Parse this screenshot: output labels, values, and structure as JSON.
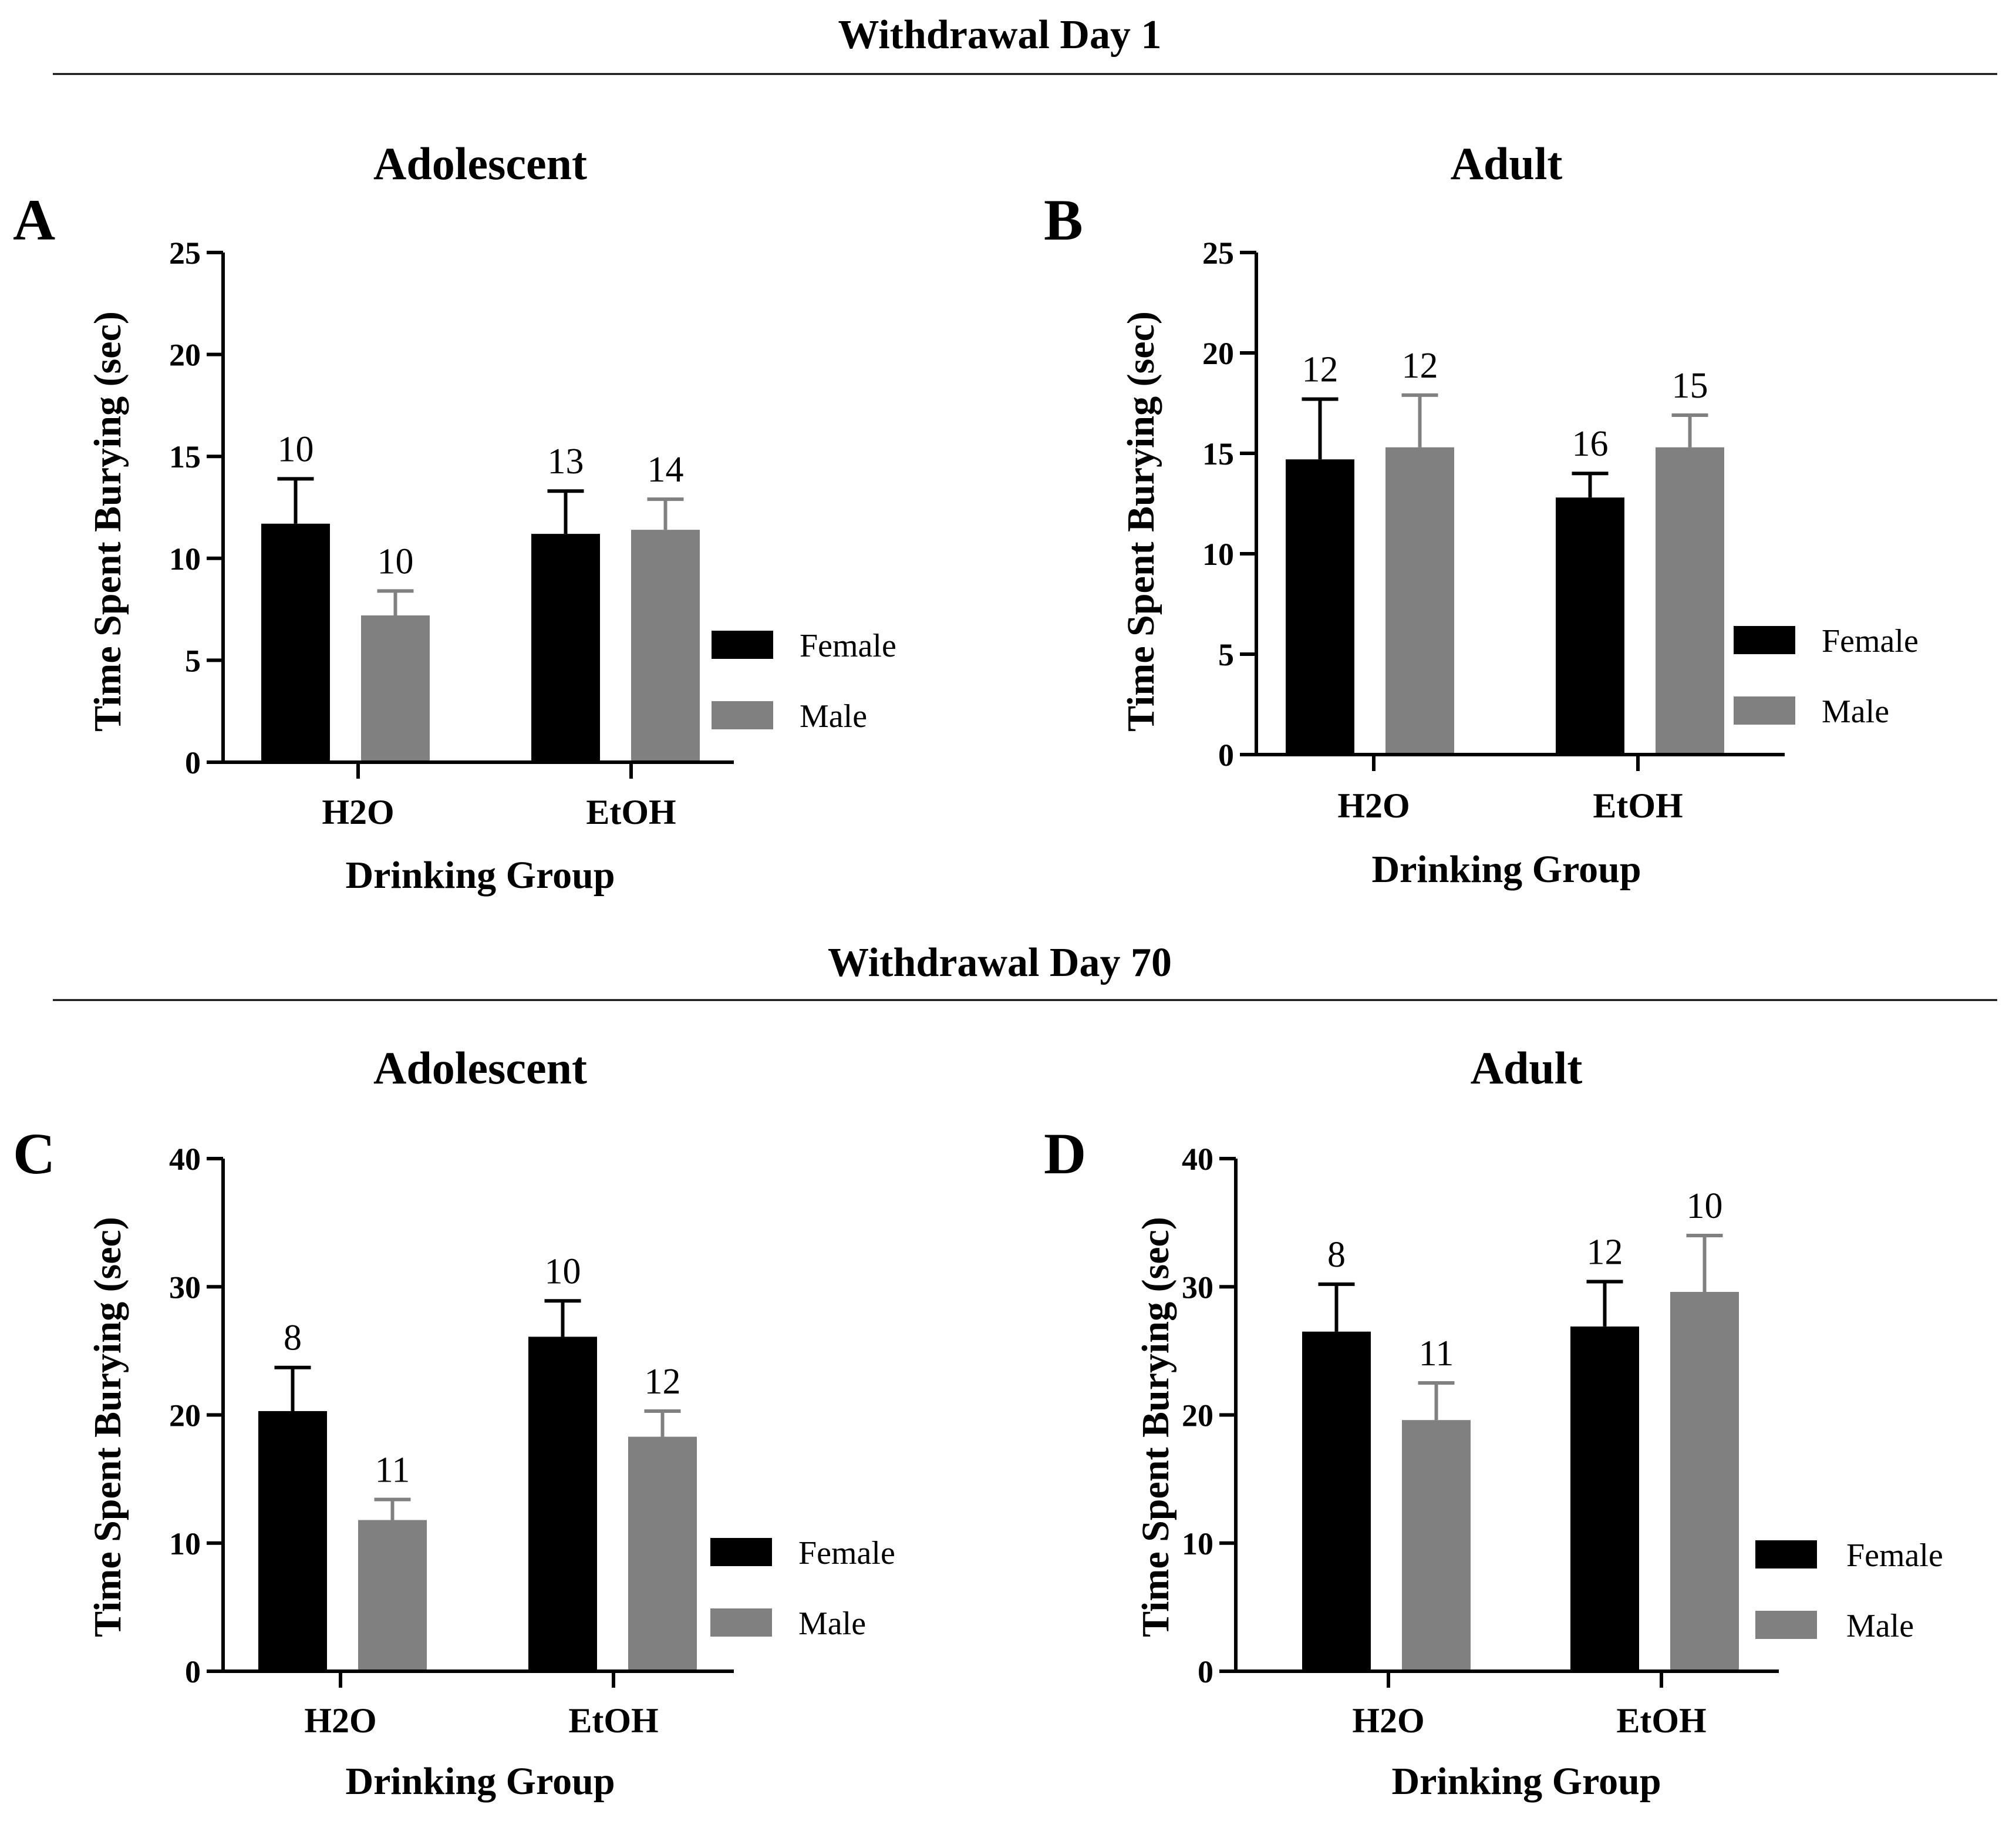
{
  "figure": {
    "sections": [
      {
        "title": "Withdrawal Day 1"
      },
      {
        "title": "Withdrawal Day 70"
      }
    ],
    "colors": {
      "Female": "#000000",
      "Male": "#808080"
    }
  },
  "chart_data": [
    {
      "panel": "A",
      "section": "Withdrawal Day 1",
      "type": "bar",
      "title": "Adolescent",
      "xlabel": "Drinking Group",
      "ylabel": "Time Spent Burying (sec)",
      "ylim": [
        0,
        25
      ],
      "yticks": [
        0,
        5,
        10,
        15,
        20,
        25
      ],
      "categories": [
        "H2O",
        "EtOH"
      ],
      "series": [
        {
          "name": "Female",
          "values": [
            11.7,
            11.2
          ],
          "errors": [
            2.2,
            2.1
          ],
          "n": [
            "10",
            "13"
          ]
        },
        {
          "name": "Male",
          "values": [
            7.2,
            11.4
          ],
          "errors": [
            1.2,
            1.5
          ],
          "n": [
            "10",
            "14"
          ]
        }
      ]
    },
    {
      "panel": "B",
      "section": "Withdrawal Day 1",
      "type": "bar",
      "title": "Adult",
      "xlabel": "Drinking Group",
      "ylabel": "Time Spent Burying (sec)",
      "ylim": [
        0,
        25
      ],
      "yticks": [
        0,
        5,
        10,
        15,
        20,
        25
      ],
      "categories": [
        "H2O",
        "EtOH"
      ],
      "series": [
        {
          "name": "Female",
          "values": [
            14.7,
            12.8
          ],
          "errors": [
            3.0,
            1.2
          ],
          "n": [
            "12",
            "16"
          ]
        },
        {
          "name": "Male",
          "values": [
            15.3,
            15.3
          ],
          "errors": [
            2.6,
            1.6
          ],
          "n": [
            "12",
            "15"
          ]
        }
      ]
    },
    {
      "panel": "C",
      "section": "Withdrawal Day 70",
      "type": "bar",
      "title": "Adolescent",
      "xlabel": "Drinking Group",
      "ylabel": "Time Spent Burying (sec)",
      "ylim": [
        0,
        40
      ],
      "yticks": [
        0,
        10,
        20,
        30,
        40
      ],
      "categories": [
        "H2O",
        "EtOH"
      ],
      "series": [
        {
          "name": "Female",
          "values": [
            20.3,
            26.1
          ],
          "errors": [
            3.4,
            2.8
          ],
          "n": [
            "8",
            "10"
          ]
        },
        {
          "name": "Male",
          "values": [
            11.8,
            18.3
          ],
          "errors": [
            1.6,
            2.0
          ],
          "n": [
            "11",
            "12"
          ]
        }
      ]
    },
    {
      "panel": "D",
      "section": "Withdrawal Day 70",
      "type": "bar",
      "title": "Adult",
      "xlabel": "Drinking Group",
      "ylabel": "Time Spent Burying (sec)",
      "ylim": [
        0,
        40
      ],
      "yticks": [
        0,
        10,
        20,
        30,
        40
      ],
      "categories": [
        "H2O",
        "EtOH"
      ],
      "series": [
        {
          "name": "Female",
          "values": [
            26.5,
            26.9
          ],
          "errors": [
            3.7,
            3.5
          ],
          "n": [
            "8",
            "12"
          ]
        },
        {
          "name": "Male",
          "values": [
            19.6,
            29.6
          ],
          "errors": [
            2.9,
            4.4
          ],
          "n": [
            "11",
            "10"
          ]
        }
      ]
    }
  ]
}
